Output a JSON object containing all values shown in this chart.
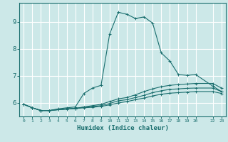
{
  "xlabel": "Humidex (Indice chaleur)",
  "ylabel": "",
  "background_color": "#cce8e8",
  "grid_color": "#ffffff",
  "line_color": "#1a6e6e",
  "xticks": [
    0,
    1,
    2,
    3,
    4,
    5,
    6,
    7,
    8,
    9,
    10,
    11,
    12,
    13,
    14,
    15,
    16,
    17,
    18,
    19,
    20,
    22,
    23
  ],
  "xtick_labels": [
    "0",
    "1",
    "2",
    "3",
    "4",
    "5",
    "6",
    "7",
    "8",
    "9",
    "10",
    "11",
    "12",
    "13",
    "14",
    "15",
    "16",
    "17",
    "18",
    "19",
    "20",
    "22",
    "23"
  ],
  "ylim": [
    5.5,
    9.7
  ],
  "yticks": [
    6,
    7,
    8,
    9
  ],
  "lines": [
    {
      "x": [
        0,
        1,
        2,
        3,
        4,
        5,
        6,
        7,
        8,
        9,
        10,
        11,
        12,
        13,
        14,
        15,
        16,
        17,
        18,
        19,
        20,
        22,
        23
      ],
      "y": [
        5.95,
        5.82,
        5.72,
        5.72,
        5.78,
        5.82,
        5.85,
        6.35,
        6.55,
        6.65,
        8.55,
        9.35,
        9.28,
        9.12,
        9.18,
        8.95,
        7.85,
        7.55,
        7.05,
        7.02,
        7.05,
        6.62,
        6.42
      ]
    },
    {
      "x": [
        0,
        1,
        2,
        3,
        4,
        5,
        6,
        7,
        8,
        9,
        10,
        11,
        12,
        13,
        14,
        15,
        16,
        17,
        18,
        19,
        20,
        22,
        23
      ],
      "y": [
        5.95,
        5.82,
        5.72,
        5.72,
        5.75,
        5.78,
        5.8,
        5.85,
        5.9,
        5.95,
        6.05,
        6.15,
        6.2,
        6.3,
        6.42,
        6.52,
        6.6,
        6.65,
        6.68,
        6.7,
        6.72,
        6.72,
        6.55
      ]
    },
    {
      "x": [
        0,
        1,
        2,
        3,
        4,
        5,
        6,
        7,
        8,
        9,
        10,
        11,
        12,
        13,
        14,
        15,
        16,
        17,
        18,
        19,
        20,
        22,
        23
      ],
      "y": [
        5.95,
        5.82,
        5.72,
        5.72,
        5.75,
        5.78,
        5.8,
        5.84,
        5.87,
        5.9,
        5.98,
        6.08,
        6.12,
        6.2,
        6.28,
        6.38,
        6.45,
        6.5,
        6.52,
        6.54,
        6.55,
        6.55,
        6.42
      ]
    },
    {
      "x": [
        0,
        1,
        2,
        3,
        4,
        5,
        6,
        7,
        8,
        9,
        10,
        11,
        12,
        13,
        14,
        15,
        16,
        17,
        18,
        19,
        20,
        22,
        23
      ],
      "y": [
        5.95,
        5.82,
        5.72,
        5.72,
        5.75,
        5.77,
        5.79,
        5.82,
        5.84,
        5.87,
        5.93,
        6.0,
        6.05,
        6.12,
        6.18,
        6.26,
        6.32,
        6.36,
        6.38,
        6.4,
        6.42,
        6.42,
        6.35
      ]
    }
  ]
}
